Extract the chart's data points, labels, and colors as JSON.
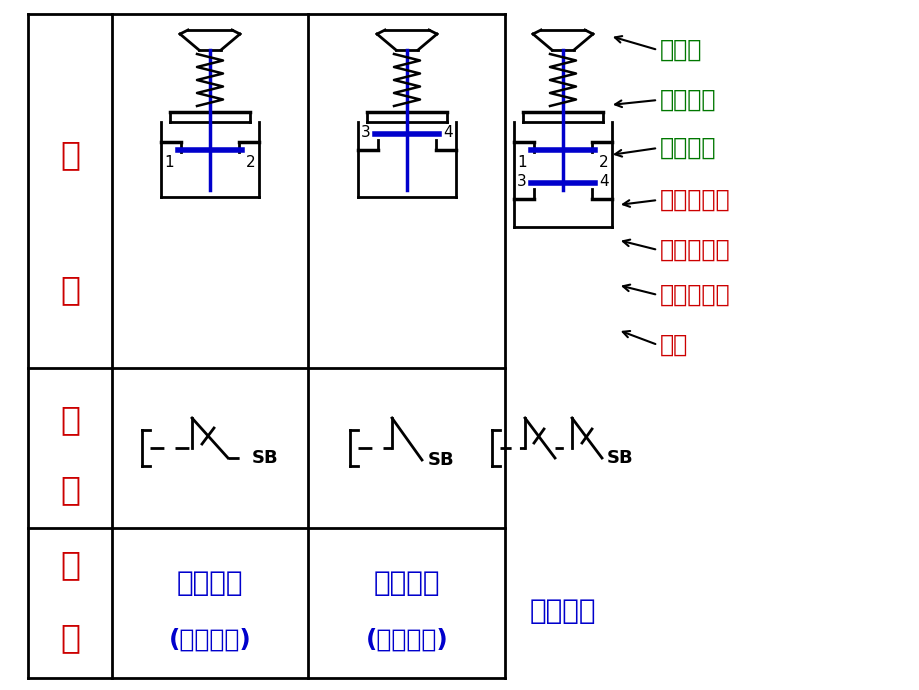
{
  "bg_color": "#ffffff",
  "grid_color": "#000000",
  "red_color": "#cc0000",
  "green_color": "#007700",
  "blue_color": "#0000cc",
  "black_color": "#000000",
  "label_jiegou": [
    "结",
    "构"
  ],
  "label_fuhao": [
    "符",
    "号"
  ],
  "label_mingcheng": [
    "名",
    "称"
  ],
  "col1_name1": "常闭按钮",
  "col1_name2": "(停止按钮)",
  "col2_name1": "常开按钮",
  "col2_name2": "(起动按钮)",
  "col3_name": "复合按钮",
  "ann_green": [
    "按钮帽",
    "复位弹簧",
    "支柱连杆"
  ],
  "ann_red": [
    "常闭静触头",
    "桥式静触头",
    "常开静触头",
    "外壳"
  ],
  "SB": "SB"
}
